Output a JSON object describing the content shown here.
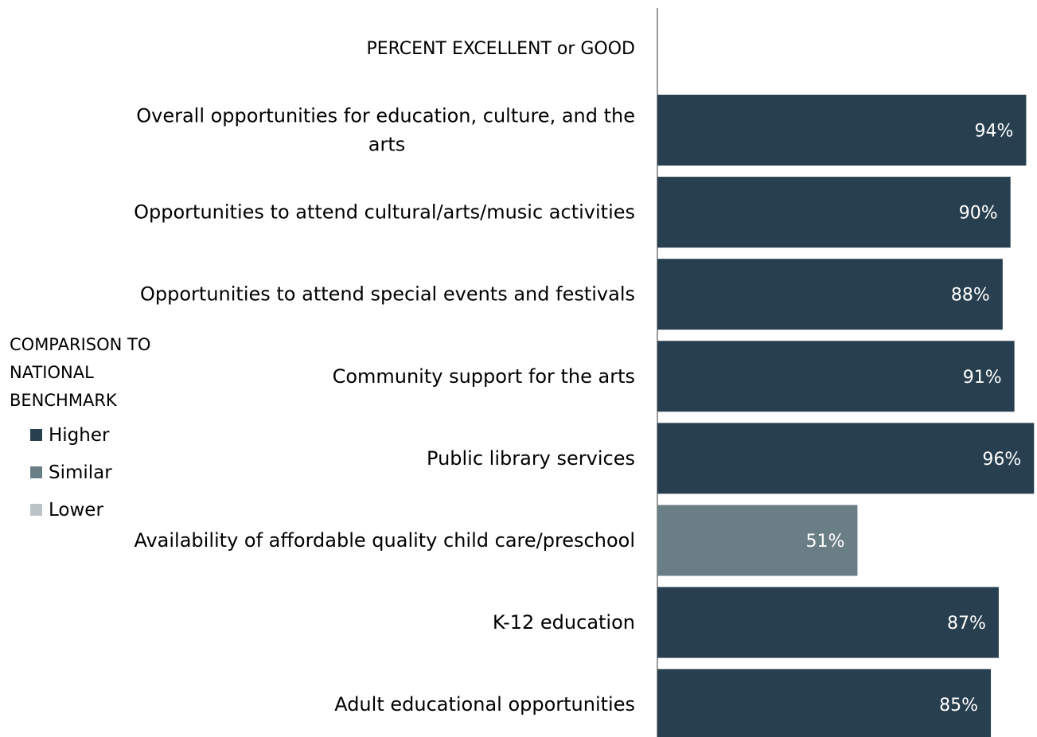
{
  "chart_data": {
    "type": "bar",
    "orientation": "horizontal",
    "header": "PERCENT EXCELLENT or GOOD",
    "xlim": [
      0,
      100
    ],
    "categories": [
      [
        "Overall opportunities for education, culture, and the",
        "arts"
      ],
      [
        "Opportunities to attend cultural/arts/music activities"
      ],
      [
        "Opportunities to attend special events and festivals"
      ],
      [
        "Community support for the arts"
      ],
      [
        "Public library services"
      ],
      [
        "Availability of affordable quality child care/preschool"
      ],
      [
        "K-12 education"
      ],
      [
        "Adult educational opportunities"
      ]
    ],
    "values": [
      94,
      90,
      88,
      91,
      96,
      51,
      87,
      85
    ],
    "value_labels": [
      "94%",
      "90%",
      "88%",
      "91%",
      "96%",
      "51%",
      "87%",
      "85%"
    ],
    "comparison": [
      "Higher",
      "Higher",
      "Higher",
      "Higher",
      "Higher",
      "Similar",
      "Higher",
      "Higher"
    ],
    "legend": {
      "title_lines": [
        "COMPARISON TO",
        "NATIONAL",
        "BENCHMARK"
      ],
      "placement": "left",
      "items": [
        {
          "label": "Higher",
          "color": "#283f4f"
        },
        {
          "label": "Similar",
          "color": "#6a7e85"
        },
        {
          "label": "Lower",
          "color": "#bcc3c7"
        }
      ]
    }
  }
}
